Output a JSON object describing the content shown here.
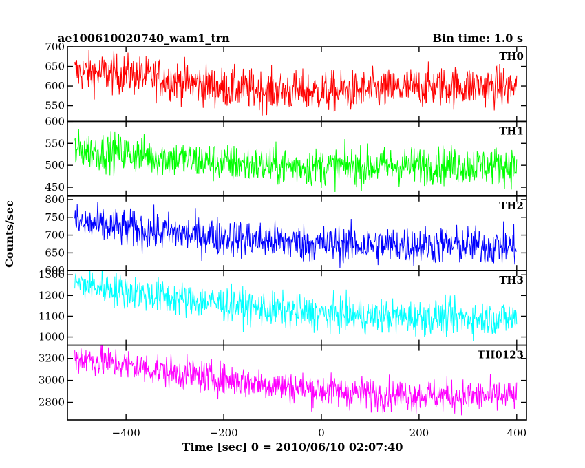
{
  "chart_data": {
    "type": "line",
    "title_left": "ae100610020740_wam1_trn",
    "title_right": "Bin time: 1.0 s",
    "xlabel": "Time [sec] 0 = 2010/06/10 02:07:40",
    "ylabel": "Counts/sec",
    "xlim": [
      -520,
      420
    ],
    "xticks": [
      -400,
      -200,
      0,
      200,
      400
    ],
    "x_range": [
      -505,
      400
    ],
    "grid": false,
    "panels": [
      {
        "name": "TH0",
        "color": "#ff0000",
        "ylim": [
          510,
          700
        ],
        "yticks": [
          550,
          600,
          650,
          700
        ],
        "trend": [
          [
            -505,
            635
          ],
          [
            -400,
            630
          ],
          [
            -300,
            615
          ],
          [
            -200,
            595
          ],
          [
            -100,
            588
          ],
          [
            0,
            585
          ],
          [
            100,
            588
          ],
          [
            200,
            598
          ],
          [
            300,
            600
          ],
          [
            400,
            596
          ]
        ],
        "noise": 26
      },
      {
        "name": "TH1",
        "color": "#00ff00",
        "ylim": [
          430,
          600
        ],
        "yticks": [
          450,
          500,
          550,
          600
        ],
        "trend": [
          [
            -505,
            535
          ],
          [
            -400,
            528
          ],
          [
            -300,
            515
          ],
          [
            -200,
            505
          ],
          [
            -100,
            498
          ],
          [
            0,
            496
          ],
          [
            100,
            497
          ],
          [
            200,
            500
          ],
          [
            300,
            500
          ],
          [
            400,
            498
          ]
        ],
        "noise": 22
      },
      {
        "name": "TH2",
        "color": "#0000ff",
        "ylim": [
          600,
          810
        ],
        "yticks": [
          600,
          650,
          700,
          750,
          800
        ],
        "trend": [
          [
            -505,
            735
          ],
          [
            -400,
            718
          ],
          [
            -300,
            705
          ],
          [
            -200,
            695
          ],
          [
            -100,
            683
          ],
          [
            0,
            675
          ],
          [
            100,
            672
          ],
          [
            200,
            672
          ],
          [
            300,
            670
          ],
          [
            400,
            668
          ]
        ],
        "noise": 27
      },
      {
        "name": "TH3",
        "color": "#00ffff",
        "ylim": [
          960,
          1320
        ],
        "yticks": [
          1000,
          1100,
          1200,
          1300
        ],
        "trend": [
          [
            -505,
            1260
          ],
          [
            -400,
            1220
          ],
          [
            -300,
            1185
          ],
          [
            -200,
            1160
          ],
          [
            -100,
            1130
          ],
          [
            0,
            1110
          ],
          [
            100,
            1100
          ],
          [
            200,
            1095
          ],
          [
            300,
            1092
          ],
          [
            400,
            1090
          ]
        ],
        "noise": 42
      },
      {
        "name": "TH0123",
        "color": "#ff00ff",
        "ylim": [
          2640,
          3320
        ],
        "yticks": [
          2800,
          3000,
          3200
        ],
        "trend": [
          [
            -505,
            3210
          ],
          [
            -400,
            3140
          ],
          [
            -300,
            3070
          ],
          [
            -200,
            3010
          ],
          [
            -100,
            2960
          ],
          [
            0,
            2910
          ],
          [
            100,
            2880
          ],
          [
            200,
            2865
          ],
          [
            300,
            2855
          ],
          [
            400,
            2850
          ]
        ],
        "noise": 75
      }
    ]
  }
}
